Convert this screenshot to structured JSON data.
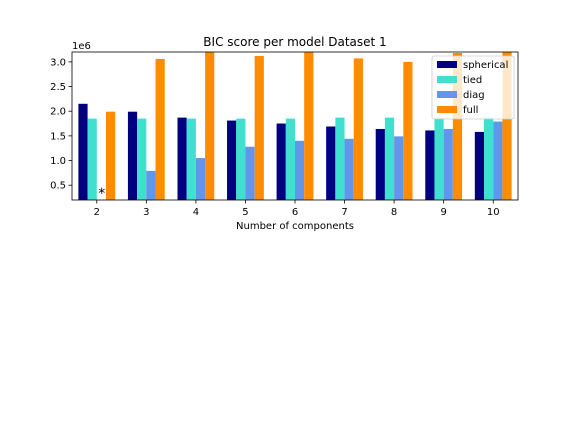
{
  "chart_data": {
    "type": "bar",
    "title": "BIC score per model Dataset 1",
    "xlabel": "Number of components",
    "ylabel": "",
    "y_scale_label": "1e6",
    "ylim": [
      0.2,
      3.2
    ],
    "yticks": [
      0.5,
      1.0,
      1.5,
      2.0,
      2.5,
      3.0
    ],
    "ytick_labels": [
      "0.5",
      "1.0",
      "1.5",
      "2.0",
      "2.5",
      "3.0"
    ],
    "categories": [
      "2",
      "3",
      "4",
      "5",
      "6",
      "7",
      "8",
      "9",
      "10"
    ],
    "series": [
      {
        "name": "spherical",
        "color": "#000080",
        "values": [
          2.15,
          1.99,
          1.87,
          1.81,
          1.75,
          1.69,
          1.64,
          1.61,
          1.58
        ]
      },
      {
        "name": "tied",
        "color": "#40e0d0",
        "values": [
          1.85,
          1.85,
          1.85,
          1.85,
          1.85,
          1.87,
          1.87,
          1.87,
          1.87
        ]
      },
      {
        "name": "diag",
        "color": "#6495ed",
        "values": [
          0.0,
          0.79,
          1.05,
          1.28,
          1.4,
          1.44,
          1.49,
          1.64,
          1.79
        ]
      },
      {
        "name": "full",
        "color": "#ff8c00",
        "values": [
          1.99,
          3.06,
          3.22,
          3.12,
          3.2,
          3.07,
          3.0,
          3.18,
          3.22
        ]
      }
    ],
    "annotation": {
      "text": "*",
      "category": "2",
      "y": 0.4
    },
    "legend": {
      "position": "top-right"
    },
    "grid": false
  }
}
